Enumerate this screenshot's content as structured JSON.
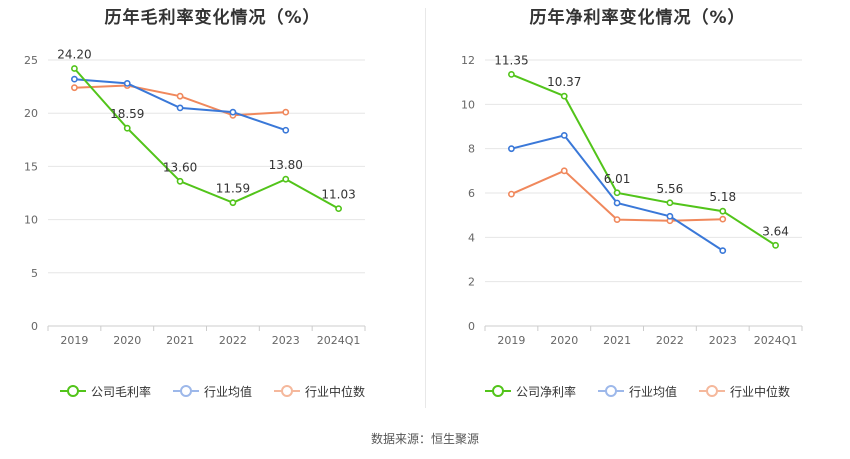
{
  "source": "数据来源：恒生聚源",
  "chart_data": [
    {
      "type": "line",
      "title": "历年毛利率变化情况（%）",
      "categories": [
        "2019",
        "2020",
        "2021",
        "2022",
        "2023",
        "2024Q1"
      ],
      "ylim": [
        0,
        25
      ],
      "yticks": [
        0,
        5,
        10,
        15,
        20,
        25
      ],
      "grid": true,
      "legend_position": "bottom",
      "series": [
        {
          "name": "公司毛利率",
          "color": "#52c41a",
          "values": [
            24.2,
            18.59,
            13.6,
            11.59,
            13.8,
            11.03
          ],
          "labels": [
            "24.20",
            "18.59",
            "13.60",
            "11.59",
            "13.80",
            "11.03"
          ]
        },
        {
          "name": "行业均值",
          "color": "#3a78d8",
          "values": [
            23.2,
            22.8,
            20.5,
            20.1,
            18.4,
            null
          ]
        },
        {
          "name": "行业中位数",
          "color": "#f0885c",
          "values": [
            22.4,
            22.6,
            21.6,
            19.8,
            20.1,
            null
          ]
        }
      ]
    },
    {
      "type": "line",
      "title": "历年净利率变化情况（%）",
      "categories": [
        "2019",
        "2020",
        "2021",
        "2022",
        "2023",
        "2024Q1"
      ],
      "ylim": [
        0,
        12
      ],
      "yticks": [
        0,
        2,
        4,
        6,
        8,
        10,
        12
      ],
      "grid": true,
      "legend_position": "bottom",
      "series": [
        {
          "name": "公司净利率",
          "color": "#52c41a",
          "values": [
            11.35,
            10.37,
            6.01,
            5.56,
            5.18,
            3.64
          ],
          "labels": [
            "11.35",
            "10.37",
            "6.01",
            "5.56",
            "5.18",
            "3.64"
          ]
        },
        {
          "name": "行业均值",
          "color": "#3a78d8",
          "values": [
            8.0,
            8.6,
            5.55,
            4.95,
            3.4,
            null
          ]
        },
        {
          "name": "行业中位数",
          "color": "#f0885c",
          "values": [
            5.95,
            7.0,
            4.8,
            4.75,
            4.82,
            null
          ]
        }
      ]
    }
  ]
}
